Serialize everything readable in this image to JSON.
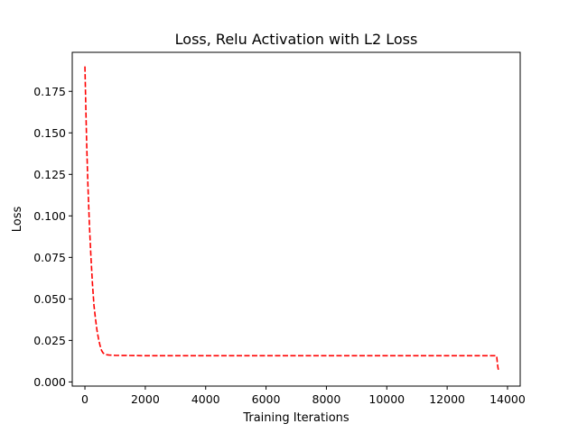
{
  "chart_data": {
    "type": "line",
    "title": "Loss, Relu Activation with L2 Loss",
    "xlabel": "Training Iterations",
    "ylabel": "Loss",
    "xlim": [
      -420,
      14420
    ],
    "ylim": [
      -0.0025,
      0.1985
    ],
    "x_ticks": [
      0,
      2000,
      4000,
      6000,
      8000,
      10000,
      12000,
      14000
    ],
    "x_tick_labels": [
      "0",
      "2000",
      "4000",
      "6000",
      "8000",
      "10000",
      "12000",
      "14000"
    ],
    "y_ticks": [
      0.0,
      0.025,
      0.05,
      0.075,
      0.1,
      0.125,
      0.15,
      0.175
    ],
    "y_tick_labels": [
      "0.000",
      "0.025",
      "0.050",
      "0.075",
      "0.100",
      "0.125",
      "0.150",
      "0.175"
    ],
    "grid": false,
    "series": [
      {
        "color": "#ff0000",
        "line_style": "dashed",
        "x": [
          0,
          30,
          60,
          100,
          150,
          200,
          250,
          300,
          350,
          400,
          450,
          500,
          550,
          600,
          650,
          700,
          800,
          1000,
          1500,
          2000,
          4000,
          6000,
          8000,
          10000,
          12000,
          13600,
          13620,
          13640,
          13660,
          13680,
          13700
        ],
        "y": [
          0.19,
          0.165,
          0.142,
          0.118,
          0.094,
          0.075,
          0.059,
          0.046,
          0.038,
          0.031,
          0.026,
          0.022,
          0.019,
          0.0175,
          0.0168,
          0.0164,
          0.0162,
          0.016,
          0.0159,
          0.0158,
          0.0158,
          0.0158,
          0.0158,
          0.0158,
          0.0158,
          0.0158,
          0.0158,
          0.0157,
          0.012,
          0.009,
          0.007
        ]
      }
    ]
  }
}
